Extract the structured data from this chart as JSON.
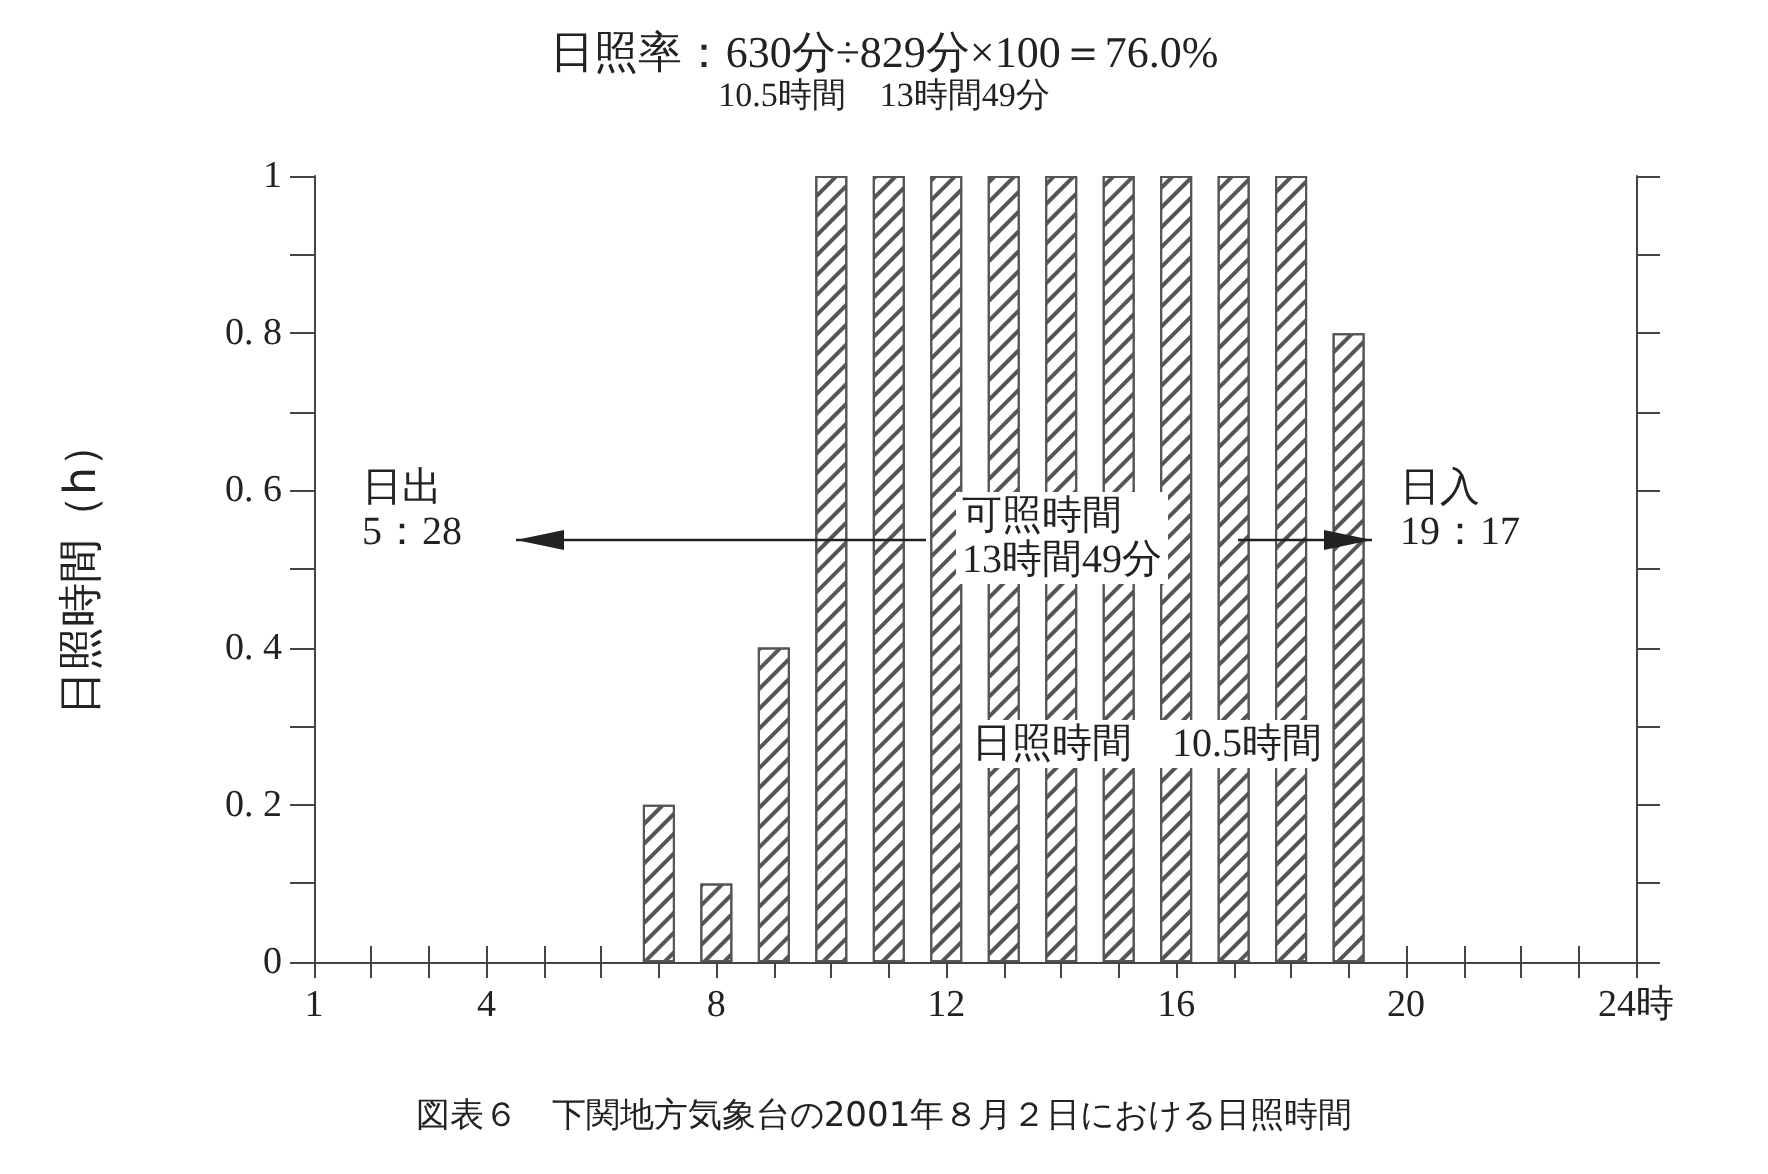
{
  "chart_data": {
    "type": "bar",
    "title": "日照率：630分÷829分×100＝76.0%",
    "subtitle": "10.5時間　13時間49分",
    "ylabel": "日照時間（h）",
    "x": [
      7,
      8,
      9,
      10,
      11,
      12,
      13,
      14,
      15,
      16,
      17,
      18,
      19
    ],
    "values": [
      0.2,
      0.1,
      0.4,
      1,
      1,
      1,
      1,
      1,
      1,
      1,
      1,
      1,
      0.8
    ],
    "color": "#555555",
    "xlim": [
      1,
      24
    ],
    "xticks": [
      1,
      {
        "value": 2,
        "label": null
      },
      {
        "value": 3,
        "label": null
      },
      4,
      {
        "value": 5,
        "label": null
      },
      {
        "value": 6,
        "label": null
      },
      {
        "value": 7,
        "label": null
      },
      8,
      {
        "value": 9,
        "label": null
      },
      {
        "value": 10,
        "label": null
      },
      {
        "value": 11,
        "label": null
      },
      12,
      {
        "value": 13,
        "label": null
      },
      {
        "value": 14,
        "label": null
      },
      {
        "value": 15,
        "label": null
      },
      16,
      {
        "value": 17,
        "label": null
      },
      {
        "value": 18,
        "label": null
      },
      {
        "value": 19,
        "label": null
      },
      20,
      {
        "value": 21,
        "label": null
      },
      {
        "value": 22,
        "label": null
      },
      {
        "value": 23,
        "label": null
      },
      {
        "value": 24,
        "label": "24時"
      }
    ],
    "ylim": [
      0,
      1
    ],
    "yticks": [
      0,
      {
        "value": 0.1,
        "label": null
      },
      {
        "value": 0.2,
        "label": "0. 2"
      },
      {
        "value": 0.3,
        "label": null
      },
      {
        "value": 0.4,
        "label": "0. 4"
      },
      {
        "value": 0.5,
        "label": null
      },
      {
        "value": 0.6,
        "label": "0. 6"
      },
      {
        "value": 0.7,
        "label": null
      },
      {
        "value": 0.8,
        "label": "0. 8"
      },
      {
        "value": 0.9,
        "label": null
      },
      1
    ],
    "grid": false,
    "annotations": [
      "日出\n5：28",
      "可照時間\n13時間49分",
      "日照時間　10.5時間",
      "日入\n19：17",
      "図表６　下関地方気象台の2001年８月２日における日照時間"
    ]
  }
}
